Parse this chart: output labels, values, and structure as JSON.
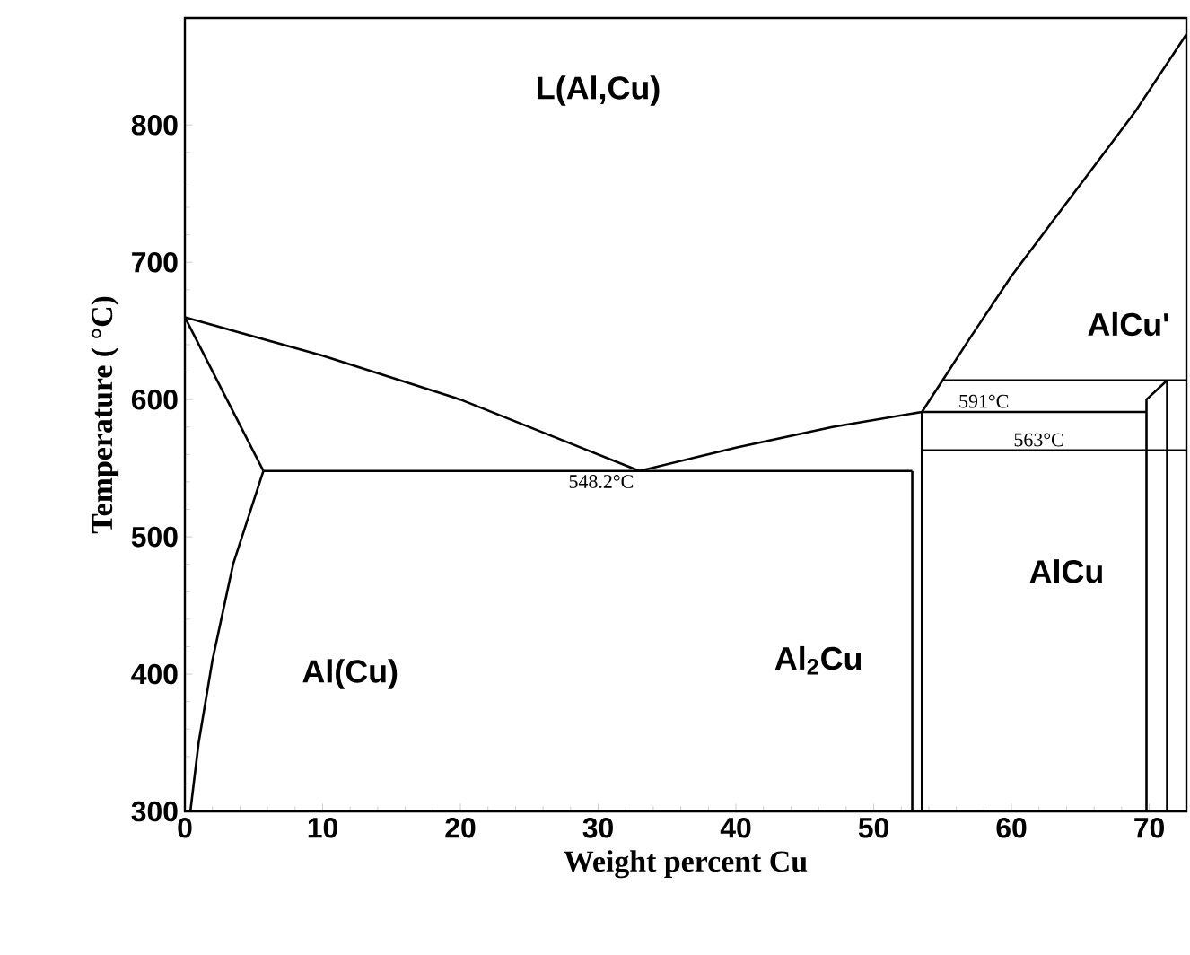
{
  "chart_data": {
    "type": "line",
    "xlabel": "Weight percent Cu",
    "ylabel": "Temperature ( °C)",
    "xlim": [
      0,
      72.7
    ],
    "ylim": [
      300,
      878
    ],
    "xticks": [
      0,
      10,
      20,
      30,
      40,
      50,
      60,
      70
    ],
    "yticks": [
      300,
      400,
      500,
      600,
      700,
      800
    ],
    "marker": "none",
    "line_style": "solid",
    "series": [
      {
        "color": "#000000",
        "x": [
          0,
          10,
          20,
          28,
          33,
          40,
          47,
          53.5,
          55,
          57,
          60,
          63,
          66,
          69,
          72.7
        ],
        "values": [
          660,
          632,
          600,
          568,
          548,
          565,
          580,
          591,
          614,
          645,
          690,
          730,
          770,
          810,
          866
        ]
      },
      {
        "color": "#000000",
        "x": [
          0,
          5.7
        ],
        "values": [
          660,
          548
        ]
      },
      {
        "color": "#000000",
        "x": [
          5.7,
          52.8
        ],
        "values": [
          548,
          548
        ]
      },
      {
        "color": "#000000",
        "x": [
          0.4,
          1,
          2,
          3.5,
          5.7
        ],
        "values": [
          300,
          350,
          410,
          480,
          548
        ]
      },
      {
        "color": "#000000",
        "x": [
          52.8,
          52.8
        ],
        "values": [
          300,
          548
        ]
      },
      {
        "color": "#000000",
        "x": [
          53.5,
          53.5
        ],
        "values": [
          300,
          591
        ]
      },
      {
        "color": "#000000",
        "x": [
          53.5,
          69.8
        ],
        "values": [
          591,
          591
        ]
      },
      {
        "color": "#000000",
        "x": [
          55,
          72.7
        ],
        "values": [
          614,
          614
        ]
      },
      {
        "color": "#000000",
        "x": [
          53.5,
          72.7
        ],
        "values": [
          563,
          563
        ]
      },
      {
        "color": "#000000",
        "x": [
          69.8,
          69.8,
          71.3
        ],
        "values": [
          300,
          600,
          614
        ]
      },
      {
        "color": "#000000",
        "x": [
          71.3,
          71.3
        ],
        "values": [
          300,
          614
        ]
      }
    ],
    "annotations": [
      "L(Al,Cu)",
      "Al(Cu)",
      "Al$_{2}$Cu",
      "AlCu'",
      "AlCu",
      {
        "text": "548.2°C",
        "x": 33,
        "y": 548
      },
      {
        "text": "591°C",
        "x": 56,
        "y": 591
      },
      {
        "text": "563°C",
        "x": 60,
        "y": 563
      }
    ]
  }
}
